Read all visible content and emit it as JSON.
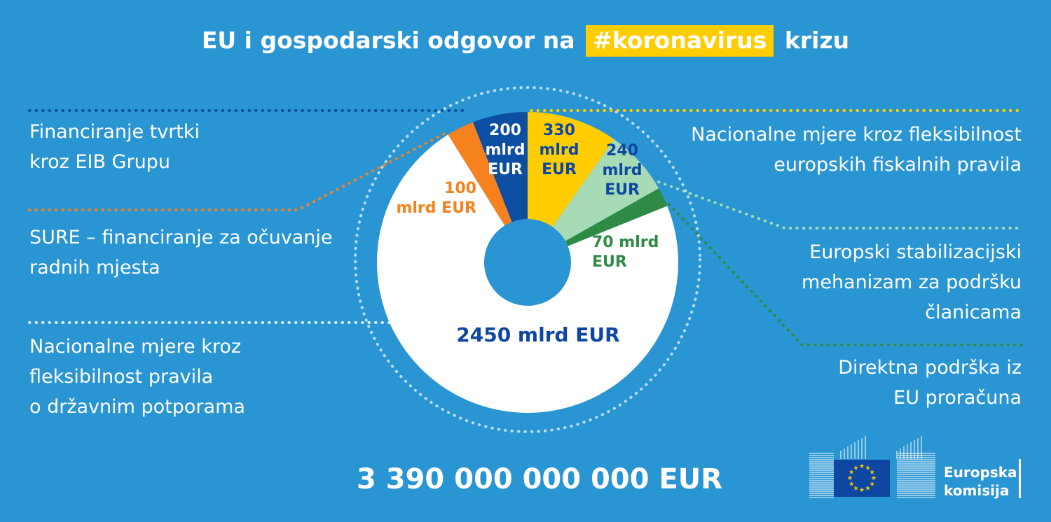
{
  "title": {
    "before": "EU i gospodarski odgovor na",
    "highlight": "#koronavirus",
    "after": "krizu"
  },
  "colors": {
    "background": "#2a95d3",
    "eib": "#0b4ea2",
    "sure": "#f5821f",
    "fiscal": "#ffcd00",
    "esm": "#a6dbb6",
    "budget": "#2e8b45",
    "stateaid": "#ffffff",
    "dark_text": "#0e47a1"
  },
  "labels": {
    "eib_line1": "Financiranje tvrtki",
    "eib_line2": "kroz EIB Grupu",
    "sure_line1": "SURE – financiranje za očuvanje",
    "sure_line2": "radnih mjesta",
    "stateaid_line1": "Nacionalne mjere kroz",
    "stateaid_line2": "fleksibilnost pravila",
    "stateaid_line3": "o državnim potporama",
    "fiscal_line1": "Nacionalne mjere kroz fleksibilnost",
    "fiscal_line2": "europskih fiskalnih pravila",
    "esm_line1": "Europski stabilizacijski",
    "esm_line2": "mehanizam za podršku",
    "esm_line3": "članicama",
    "budget_line1": "Direktna podrška iz",
    "budget_line2": "EU proračuna"
  },
  "total": "3 390 000 000 000 EUR",
  "logo": {
    "line1": "Europska",
    "line2": "komisija"
  },
  "chart_data": {
    "type": "pie",
    "donut": true,
    "unit": "mlrd EUR",
    "slices": [
      {
        "key": "fiscal",
        "value": 330,
        "label_lines": [
          "330",
          "mlrd",
          "EUR"
        ]
      },
      {
        "key": "esm",
        "value": 240,
        "label_lines": [
          "240",
          "mlrd",
          "EUR"
        ]
      },
      {
        "key": "budget",
        "value": 70,
        "label_lines": [
          "70 mlrd",
          "EUR"
        ]
      },
      {
        "key": "stateaid",
        "value": 2450,
        "label_lines": [
          "2450 mlrd EUR"
        ]
      },
      {
        "key": "sure",
        "value": 100,
        "label_lines": [
          "100",
          "mlrd EUR"
        ]
      },
      {
        "key": "eib",
        "value": 200,
        "label_lines": [
          "200",
          "mlrd",
          "EUR"
        ]
      }
    ],
    "total_label": "3 390 000 000 000 EUR"
  }
}
